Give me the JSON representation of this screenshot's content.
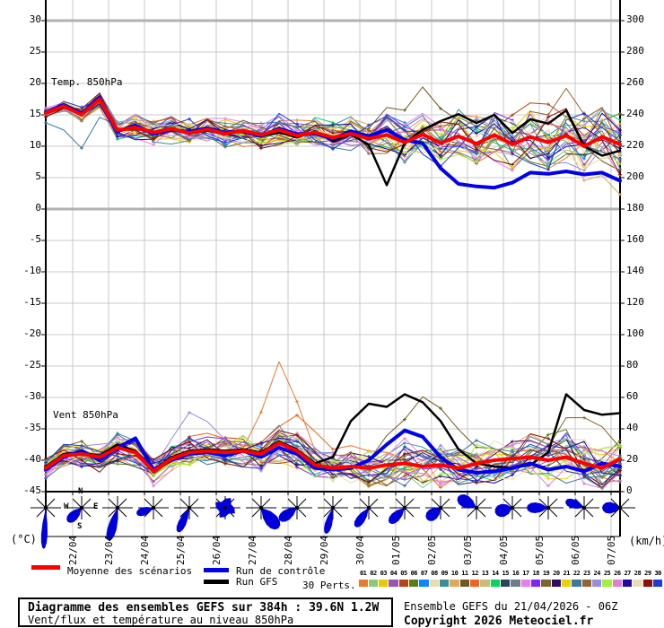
{
  "legend": {
    "mean_label": "Moyenne des scénarios",
    "control_label": "Run de contrôle",
    "gfs_label": "Run GFS",
    "perts_label": "30 Perts."
  },
  "footer": {
    "title": "Diagramme des ensembles GEFS sur 384h : 39.6N 1.2W",
    "subtitle": "Vent/flux et température au niveau 850hPa",
    "run_info": "Ensemble GEFS du 21/04/2026 - 06Z",
    "copyright": "Copyright 2026 Meteociel.fr"
  },
  "compass": {
    "n": "N",
    "e": "E",
    "s": "S",
    "w": "W"
  },
  "chart_data": {
    "type": "line",
    "x_hours_step": 12,
    "x_hours_max": 384,
    "axes": {
      "temp_ticks": [
        "30",
        "25",
        "20",
        "15",
        "10",
        "5",
        "0",
        "-5",
        "-10",
        "-15",
        "-20",
        "-25",
        "-30",
        "-35",
        "-40",
        "-45"
      ],
      "wind_ticks": [
        "300",
        "280",
        "260",
        "240",
        "220",
        "200",
        "180",
        "160",
        "140",
        "120",
        "100",
        "80",
        "60",
        "40",
        "20",
        "0"
      ],
      "dates": [
        "22/04",
        "23/04",
        "24/04",
        "25/04",
        "26/04",
        "27/04",
        "28/04",
        "29/04",
        "30/04",
        "01/05",
        "02/05",
        "03/05",
        "04/05",
        "05/05",
        "06/05",
        "07/05"
      ],
      "temp_range": [
        30,
        -45
      ],
      "wind_range": [
        300,
        0
      ]
    },
    "colors": {
      "mean": "#ff0000",
      "control": "#0000ee",
      "gfs": "#000000",
      "grid": "#c8c8c8",
      "grid_bold": "#b2b2b2",
      "axis": "#000000",
      "rose": "#0000dd"
    },
    "temp": {
      "band_label": "Temp. 850hPa",
      "unit": "(°C)",
      "mean": [
        15.3,
        16.4,
        15.0,
        17.5,
        12.6,
        13.0,
        12.2,
        12.8,
        12.1,
        12.7,
        12.0,
        12.5,
        11.8,
        12.6,
        11.7,
        12.2,
        11.4,
        12.0,
        11.2,
        11.8,
        10.6,
        11.9,
        10.5,
        11.6,
        10.4,
        11.8,
        10.3,
        11.5,
        10.6,
        11.7,
        10.0,
        11.5,
        10.3
      ],
      "control": [
        15.4,
        16.6,
        15.2,
        17.7,
        12.4,
        13.3,
        12.0,
        12.6,
        12.3,
        12.9,
        12.2,
        12.4,
        11.6,
        12.8,
        11.9,
        12.0,
        11.2,
        12.4,
        11.6,
        12.6,
        11.0,
        10.5,
        6.5,
        4.0,
        3.6,
        3.4,
        4.2,
        5.8,
        5.6,
        6.0,
        5.5,
        5.8,
        4.5
      ],
      "gfs": [
        15.2,
        16.2,
        15.1,
        17.4,
        12.5,
        12.9,
        12.0,
        12.6,
        12.0,
        12.5,
        11.9,
        12.4,
        11.6,
        12.2,
        11.4,
        12.4,
        10.8,
        11.9,
        10.2,
        3.8,
        10.5,
        12.6,
        14.0,
        15.1,
        13.7,
        15.0,
        12.1,
        14.3,
        13.6,
        15.7,
        10.0,
        8.5,
        9.3
      ],
      "spread": [
        0.7,
        0.8,
        1.0,
        1.2,
        1.8,
        2.0,
        2.0,
        2.0,
        2.0,
        2.1,
        2.1,
        2.2,
        2.2,
        2.2,
        2.2,
        2.4,
        2.4,
        2.6,
        2.6,
        3.0,
        3.2,
        3.2,
        3.4,
        3.6,
        3.6,
        3.8,
        3.8,
        4.0,
        4.0,
        4.2,
        4.2,
        4.5,
        4.5
      ]
    },
    "wind": {
      "band_label": "Vent 850hPa",
      "unit": "(km/h)",
      "mean": [
        15,
        23,
        24,
        22,
        28,
        25,
        13,
        21,
        25,
        26,
        25,
        26,
        24,
        31,
        26,
        17,
        15,
        16,
        15,
        17,
        18,
        16,
        17,
        15,
        18,
        20,
        21,
        22,
        20,
        22,
        18,
        15,
        21
      ],
      "control": [
        14,
        22,
        26,
        20,
        28,
        34,
        14,
        20,
        24,
        25,
        23,
        26,
        22,
        28,
        24,
        15,
        14,
        15,
        20,
        30,
        39,
        35,
        22,
        14,
        12,
        13,
        15,
        18,
        14,
        16,
        13,
        18,
        16
      ],
      "gfs": [
        16,
        24,
        25,
        23,
        30,
        26,
        14,
        22,
        26,
        27,
        26,
        27,
        25,
        32,
        27,
        18,
        22,
        45,
        56,
        54,
        62,
        57,
        45,
        27,
        18,
        16,
        15,
        17,
        25,
        62,
        52,
        49,
        50
      ],
      "spread": [
        6,
        7,
        8,
        8,
        9,
        9,
        8,
        8,
        9,
        9,
        9,
        10,
        10,
        12,
        11,
        10,
        9,
        10,
        10,
        12,
        13,
        13,
        13,
        12,
        12,
        13,
        13,
        14,
        14,
        15,
        15,
        15,
        14
      ]
    },
    "members": {
      "count": 30,
      "numbers": [
        "01",
        "02",
        "03",
        "04",
        "05",
        "06",
        "07",
        "08",
        "09",
        "10",
        "11",
        "12",
        "13",
        "14",
        "15",
        "16",
        "17",
        "18",
        "19",
        "20",
        "21",
        "22",
        "23",
        "24",
        "25",
        "26",
        "27",
        "28",
        "29",
        "30"
      ],
      "colors": [
        "#e87a2e",
        "#8cc87d",
        "#edc800",
        "#9955b4",
        "#b44614",
        "#5a7d14",
        "#0a87ff",
        "#e8dcb4",
        "#3c8ca0",
        "#e0a85a",
        "#6e5a1e",
        "#f0641e",
        "#c8be78",
        "#0ad264",
        "#28465a",
        "#6e7d87",
        "#e87df0",
        "#7d28f0",
        "#7d6428",
        "#320a64",
        "#e8d200",
        "#3c78a0",
        "#96642d",
        "#968ce8",
        "#a0f03c",
        "#e07dd2",
        "#1e0aa0",
        "#e8dcb9",
        "#8c0f0a",
        "#1e3cd2"
      ]
    },
    "anomalies": [
      {
        "m": 0,
        "s": "wind",
        "i": 13,
        "d": 40,
        "w": 1.1
      },
      {
        "m": 11,
        "s": "wind",
        "i": 14,
        "d": 28,
        "w": 1.5
      },
      {
        "m": 10,
        "s": "wind",
        "i": 21,
        "d": 34,
        "w": 1.7
      },
      {
        "m": 18,
        "s": "wind",
        "i": 29,
        "d": 26,
        "w": 1.5
      },
      {
        "m": 23,
        "s": "wind",
        "i": 8,
        "d": 20,
        "w": 1.2
      },
      {
        "m": 21,
        "s": "temp",
        "i": 2,
        "d": -4.8,
        "w": 1.1
      },
      {
        "m": 9,
        "s": "temp",
        "i": 31,
        "d": -5.5,
        "w": 2.0
      },
      {
        "m": 10,
        "s": "temp",
        "i": 21,
        "d": 4.5,
        "w": 3.0
      },
      {
        "m": 22,
        "s": "temp",
        "i": 29,
        "d": 4.0,
        "w": 2.0
      },
      {
        "m": 4,
        "s": "temp",
        "i": 26,
        "d": 3.5,
        "w": 2.5
      }
    ],
    "wind_roses": [
      {
        "dir": 183,
        "spread": 18,
        "len": 46
      },
      {
        "dir": 225,
        "spread": 60,
        "len": 22
      },
      {
        "dir": 195,
        "spread": 32,
        "len": 38
      },
      {
        "dir": 250,
        "spread": 55,
        "len": 20
      },
      {
        "dir": 205,
        "spread": 36,
        "len": 30
      },
      {
        "dir": 0,
        "spread": 360,
        "len": 13
      },
      {
        "dir": 140,
        "spread": 60,
        "len": 30
      },
      {
        "dir": 235,
        "spread": 60,
        "len": 24
      },
      {
        "dir": 195,
        "spread": 32,
        "len": 30
      },
      {
        "dir": 215,
        "spread": 45,
        "len": 26
      },
      {
        "dir": 225,
        "spread": 55,
        "len": 24
      },
      {
        "dir": 230,
        "spread": 80,
        "len": 20
      },
      {
        "dir": 300,
        "spread": 70,
        "len": 24
      },
      {
        "dir": 255,
        "spread": 90,
        "len": 20
      },
      {
        "dir": 270,
        "spread": 60,
        "len": 24
      },
      {
        "dir": 290,
        "spread": 55,
        "len": 22
      },
      {
        "dir": 270,
        "spread": 80,
        "len": 20
      }
    ]
  }
}
